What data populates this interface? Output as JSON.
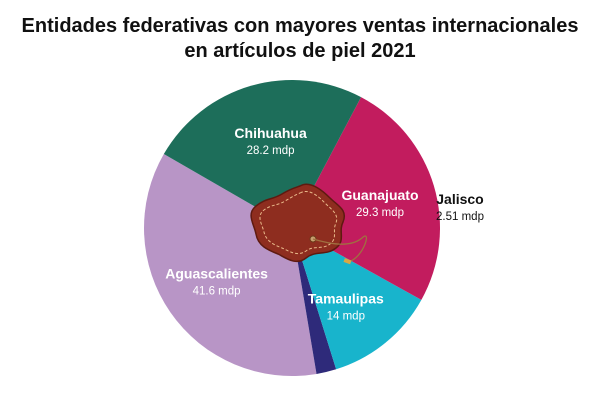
{
  "title_line1": "Entidades federativas con mayores ventas internacionales",
  "title_line2": "en artículos de piel 2021",
  "chart_data": {
    "type": "pie",
    "title": "Entidades federativas con mayores ventas internacionales en artículos de piel 2021",
    "unit": "mdp",
    "slices": [
      {
        "name": "Aguascalientes",
        "value": 41.6,
        "label": "41.6 mdp",
        "color": "#b895c6"
      },
      {
        "name": "Jalisco",
        "value": 2.51,
        "label": "2.51 mdp",
        "color": "#2e2a7a",
        "label_outside": true
      },
      {
        "name": "Tamaulipas",
        "value": 14,
        "label": "14 mdp",
        "color": "#18b4cc"
      },
      {
        "name": "Guanajuato",
        "value": 29.3,
        "label": "29.3 mdp",
        "color": "#c21c5e"
      },
      {
        "name": "Chihuahua",
        "value": 28.2,
        "label": "28.2 mdp",
        "color": "#1d6e5a"
      }
    ]
  }
}
